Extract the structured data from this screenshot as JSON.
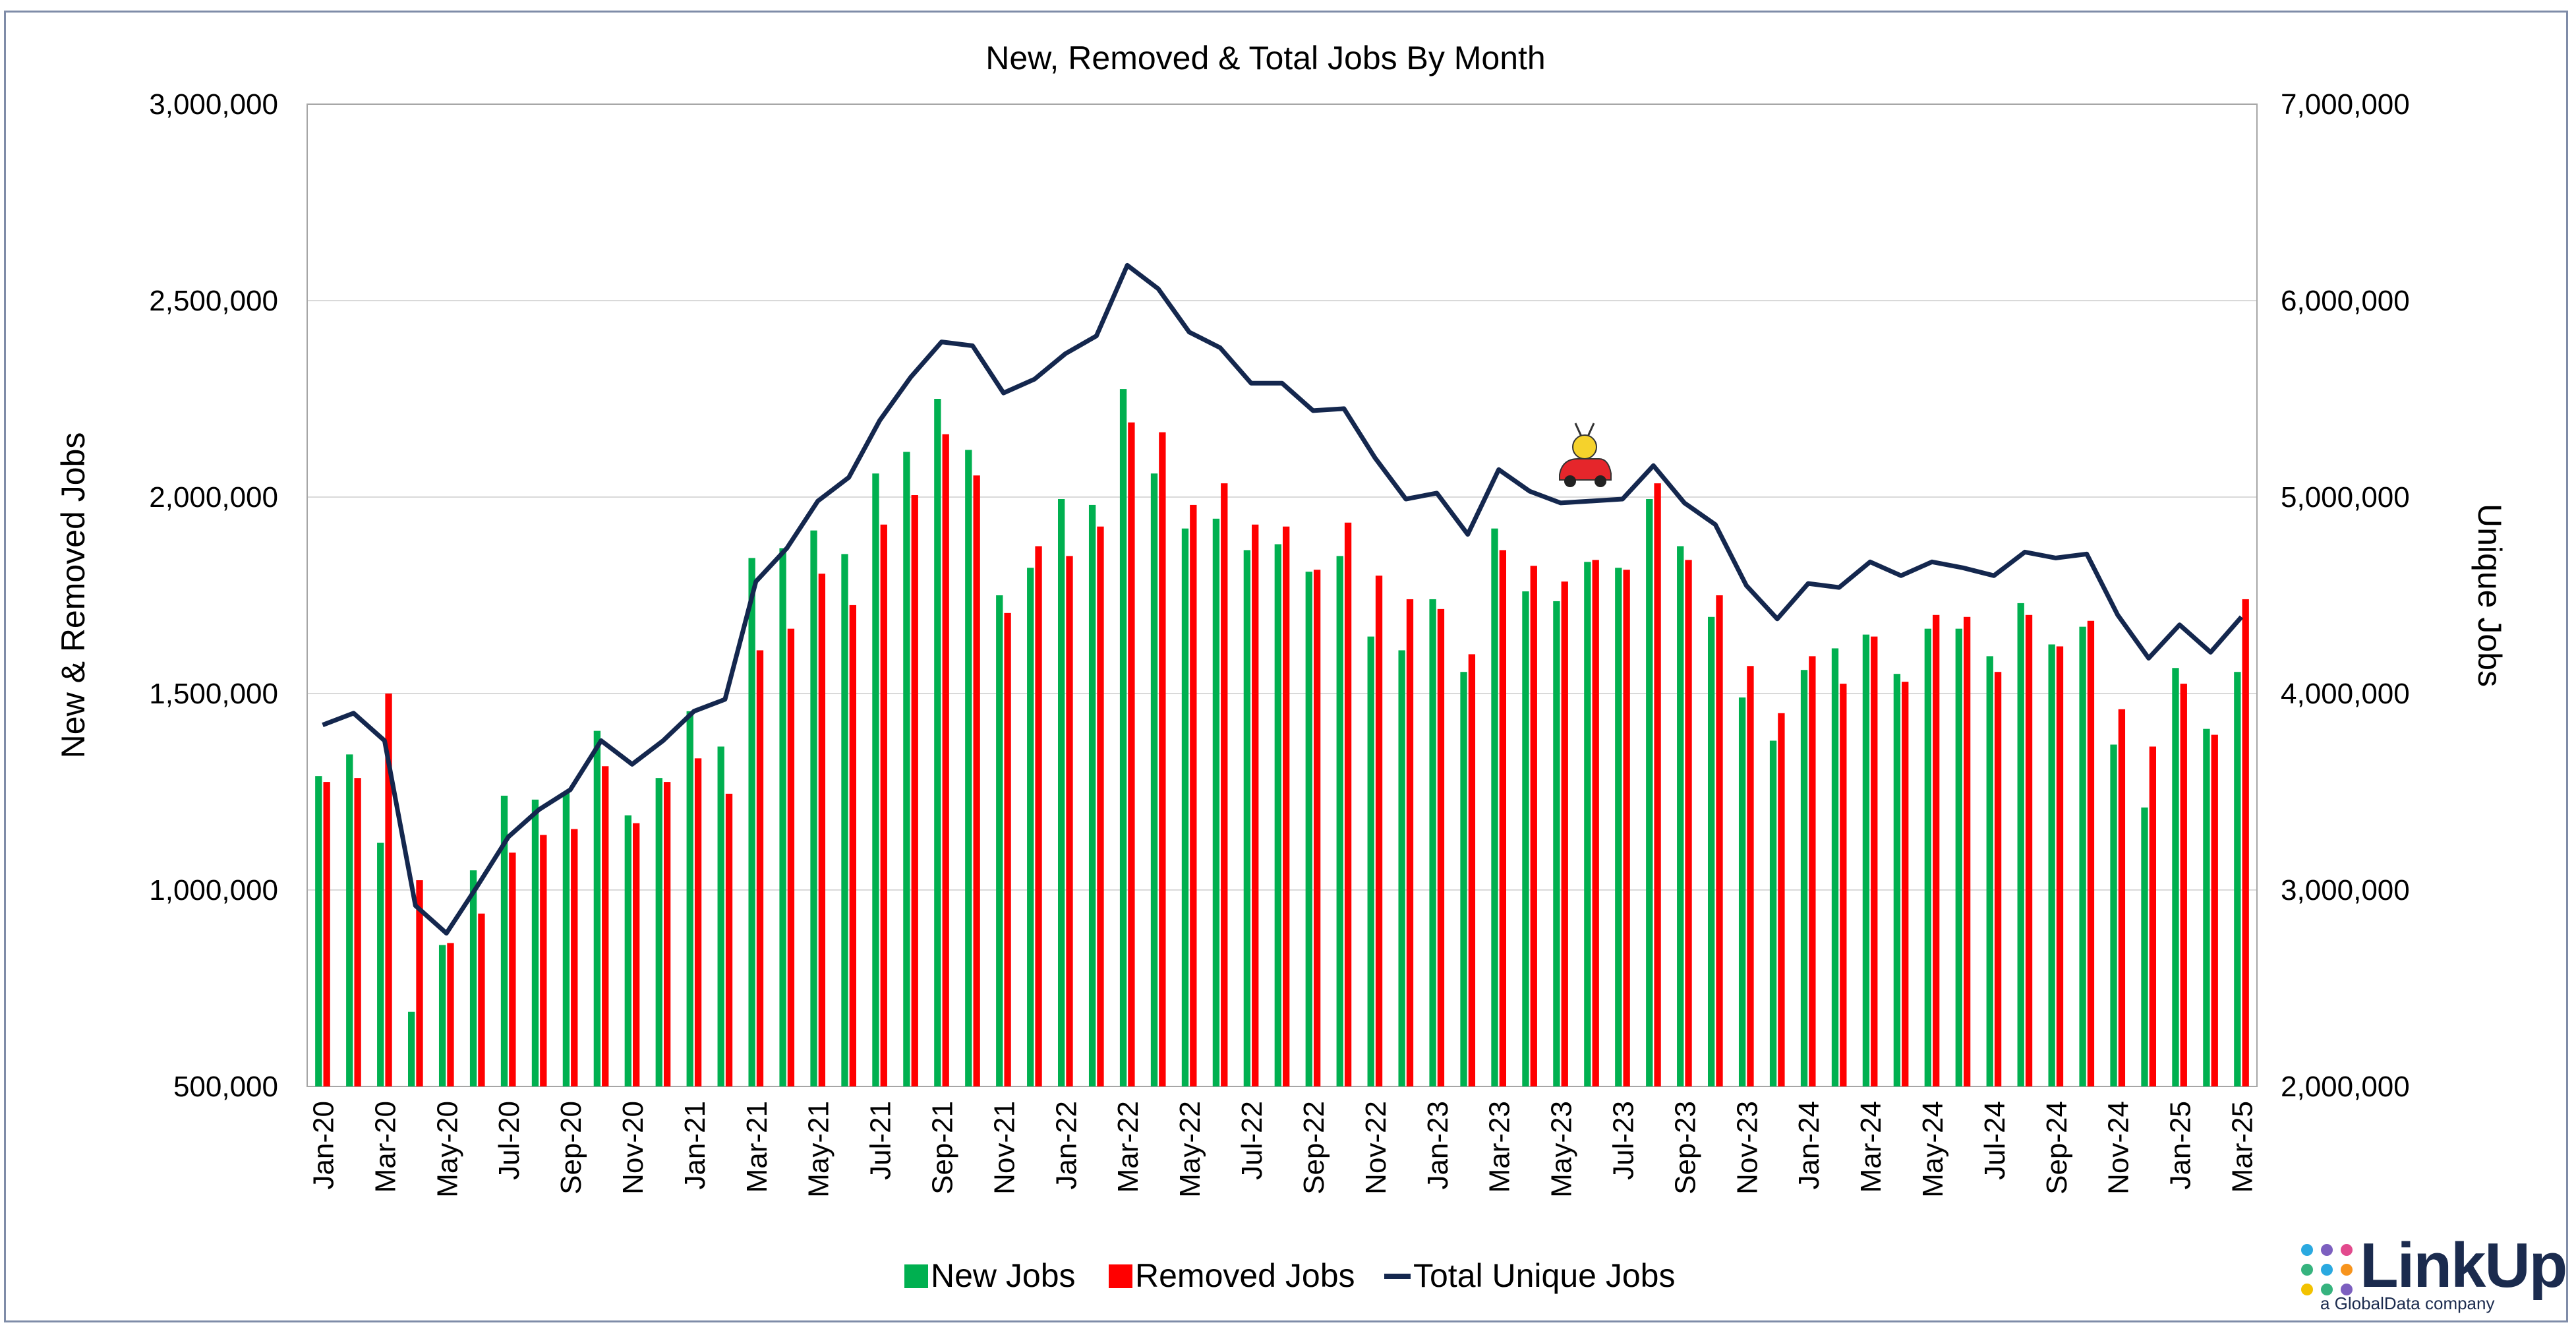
{
  "chart_data": {
    "type": "bar",
    "title": "New, Removed & Total Jobs By Month",
    "ylabel": "New & Removed Jobs",
    "y2label": "Unique Jobs",
    "ylim": [
      500000,
      3000000
    ],
    "y2lim": [
      2000000,
      7000000
    ],
    "yticks": [
      "500,000",
      "1,000,000",
      "1,500,000",
      "2,000,000",
      "2,500,000",
      "3,000,000"
    ],
    "y2ticks": [
      "2,000,000",
      "3,000,000",
      "4,000,000",
      "5,000,000",
      "6,000,000",
      "7,000,000"
    ],
    "grid": true,
    "legend_position": "bottom",
    "categories": [
      "Jan-20",
      "Feb-20",
      "Mar-20",
      "Apr-20",
      "May-20",
      "Jun-20",
      "Jul-20",
      "Aug-20",
      "Sep-20",
      "Oct-20",
      "Nov-20",
      "Dec-20",
      "Jan-21",
      "Feb-21",
      "Mar-21",
      "Apr-21",
      "May-21",
      "Jun-21",
      "Jul-21",
      "Aug-21",
      "Sep-21",
      "Oct-21",
      "Nov-21",
      "Dec-21",
      "Jan-22",
      "Feb-22",
      "Mar-22",
      "Apr-22",
      "May-22",
      "Jun-22",
      "Jul-22",
      "Aug-22",
      "Sep-22",
      "Oct-22",
      "Nov-22",
      "Dec-22",
      "Jan-23",
      "Feb-23",
      "Mar-23",
      "Apr-23",
      "May-23",
      "Jun-23",
      "Jul-23",
      "Aug-23",
      "Sep-23",
      "Oct-23",
      "Nov-23",
      "Dec-23",
      "Jan-24",
      "Feb-24",
      "Mar-24",
      "Apr-24",
      "May-24",
      "Jun-24",
      "Jul-24",
      "Aug-24",
      "Sep-24",
      "Oct-24",
      "Nov-24",
      "Dec-24",
      "Jan-25",
      "Feb-25",
      "Mar-25"
    ],
    "tick_labels": [
      "Jan-20",
      "",
      "Mar-20",
      "",
      "May-20",
      "",
      "Jul-20",
      "",
      "Sep-20",
      "",
      "Nov-20",
      "",
      "Jan-21",
      "",
      "Mar-21",
      "",
      "May-21",
      "",
      "Jul-21",
      "",
      "Sep-21",
      "",
      "Nov-21",
      "",
      "Jan-22",
      "",
      "Mar-22",
      "",
      "May-22",
      "",
      "Jul-22",
      "",
      "Sep-22",
      "",
      "Nov-22",
      "",
      "Jan-23",
      "",
      "Mar-23",
      "",
      "May-23",
      "",
      "Jul-23",
      "",
      "Sep-23",
      "",
      "Nov-23",
      "",
      "Jan-24",
      "",
      "Mar-24",
      "",
      "May-24",
      "",
      "Jul-24",
      "",
      "Sep-24",
      "",
      "Nov-24",
      "",
      "Jan-25",
      "",
      "Mar-25"
    ],
    "series": [
      {
        "name": "New Jobs",
        "color": "#00b050",
        "axis": "left",
        "values": [
          1290000,
          1345000,
          1120000,
          690000,
          860000,
          1050000,
          1240000,
          1230000,
          1250000,
          1405000,
          1190000,
          1285000,
          1455000,
          1365000,
          1845000,
          1870000,
          1915000,
          1855000,
          2060000,
          2115000,
          2250000,
          2120000,
          1750000,
          1820000,
          1995000,
          1980000,
          2275000,
          2060000,
          1920000,
          1945000,
          1865000,
          1880000,
          1810000,
          1850000,
          1645000,
          1610000,
          1740000,
          1555000,
          1920000,
          1760000,
          1735000,
          1835000,
          1820000,
          1995000,
          1875000,
          1695000,
          1490000,
          1380000,
          1560000,
          1615000,
          1650000,
          1550000,
          1665000,
          1665000,
          1595000,
          1730000,
          1625000,
          1670000,
          1370000,
          1210000,
          1565000,
          1410000,
          1555000
        ]
      },
      {
        "name": "Removed Jobs",
        "color": "#ff0000",
        "axis": "left",
        "values": [
          1275000,
          1285000,
          1500000,
          1025000,
          865000,
          940000,
          1095000,
          1140000,
          1155000,
          1315000,
          1170000,
          1275000,
          1335000,
          1245000,
          1610000,
          1665000,
          1805000,
          1725000,
          1930000,
          2005000,
          2160000,
          2055000,
          1705000,
          1875000,
          1850000,
          1925000,
          2190000,
          2165000,
          1980000,
          2035000,
          1930000,
          1925000,
          1815000,
          1935000,
          1800000,
          1740000,
          1715000,
          1600000,
          1865000,
          1825000,
          1785000,
          1840000,
          1815000,
          2035000,
          1840000,
          1750000,
          1570000,
          1450000,
          1595000,
          1525000,
          1645000,
          1530000,
          1700000,
          1695000,
          1555000,
          1700000,
          1620000,
          1685000,
          1460000,
          1365000,
          1525000,
          1395000,
          1740000
        ]
      },
      {
        "name": "Total Unique Jobs",
        "color": "#14274e",
        "axis": "right",
        "type": "line",
        "values": [
          3840000,
          3900000,
          3760000,
          2920000,
          2780000,
          3020000,
          3270000,
          3410000,
          3510000,
          3760000,
          3640000,
          3760000,
          3910000,
          3970000,
          4570000,
          4740000,
          4980000,
          5100000,
          5390000,
          5610000,
          5790000,
          5770000,
          5530000,
          5600000,
          5730000,
          5820000,
          6180000,
          6060000,
          5840000,
          5760000,
          5580000,
          5580000,
          5440000,
          5450000,
          5200000,
          4990000,
          5020000,
          4810000,
          5140000,
          5030000,
          4970000,
          4980000,
          4990000,
          5160000,
          4970000,
          4860000,
          4550000,
          4380000,
          4560000,
          4540000,
          4670000,
          4600000,
          4670000,
          4640000,
          4600000,
          4720000,
          4690000,
          4710000,
          4400000,
          4180000,
          4350000,
          4210000,
          4390000
        ]
      }
    ]
  },
  "legend": {
    "new_label": "New Jobs",
    "removed_label": "Removed Jobs",
    "total_label": "Total Unique Jobs"
  },
  "logo": {
    "name": "LinkUp",
    "sub": "a GlobalData company"
  },
  "colors": {
    "new": "#00b050",
    "removed": "#ff0000",
    "total": "#14274e",
    "frame": "#7f8ca8",
    "grid": "#d9d9d9"
  },
  "decorations": [
    "red-car-mascot-icon"
  ]
}
